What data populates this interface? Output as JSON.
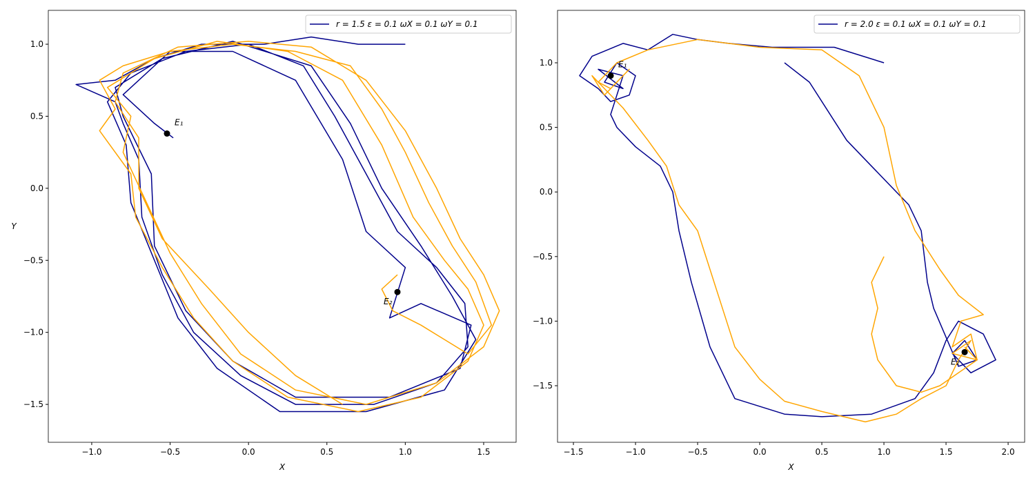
{
  "chart_data": [
    {
      "type": "line",
      "xlabel": "X",
      "ylabel": "Y",
      "xlim": [
        -1.277,
        1.707
      ],
      "ylim": [
        -1.763,
        1.235
      ],
      "xticks": [
        {
          "value": -1.0,
          "label": "−1.0"
        },
        {
          "value": -0.5,
          "label": "−0.5"
        },
        {
          "value": 0.0,
          "label": "0.0"
        },
        {
          "value": 0.5,
          "label": "0.5"
        },
        {
          "value": 1.0,
          "label": "1.0"
        },
        {
          "value": 1.5,
          "label": "1.5"
        }
      ],
      "yticks": [
        {
          "value": 1.0,
          "label": "1.0"
        },
        {
          "value": 0.5,
          "label": "0.5"
        },
        {
          "value": 0.0,
          "label": "0.0"
        },
        {
          "value": -0.5,
          "label": "−0.5"
        },
        {
          "value": -1.0,
          "label": "−1.0"
        },
        {
          "value": -1.5,
          "label": "−1.5"
        }
      ],
      "legend": "upper right",
      "series": [
        {
          "name": "r = 1.5   ε = 0.1   ωX = 0.1   ωY = 0.1",
          "color": "#00008b",
          "x": [
            1.0,
            0.7,
            0.4,
            0.1,
            -0.3,
            -0.6,
            -0.85,
            -1.1,
            -0.85,
            -0.8,
            -0.7,
            -0.68,
            -0.55,
            -0.35,
            -0.05,
            0.3,
            0.8,
            1.2,
            1.4,
            1.38,
            1.2,
            0.95,
            0.75,
            0.55,
            0.35,
            0.0,
            -0.4,
            -0.75,
            -0.9,
            -0.78,
            -0.75,
            -0.6,
            -0.45,
            -0.2,
            0.2,
            0.75,
            1.25,
            1.45,
            1.3,
            1.1,
            0.85,
            0.65,
            0.4,
            -0.1,
            -0.55,
            -0.85,
            -0.8,
            -0.62,
            -0.6,
            -0.4,
            -0.1,
            0.3,
            0.9,
            1.35,
            1.42,
            1.1,
            0.9,
            1.0,
            0.75,
            0.6,
            0.3,
            -0.1,
            -0.5,
            -0.8,
            -0.6,
            -0.48
          ],
          "y": [
            1.0,
            1.0,
            1.05,
            1.0,
            1.0,
            0.9,
            0.75,
            0.72,
            0.6,
            0.45,
            0.2,
            -0.2,
            -0.6,
            -1.0,
            -1.3,
            -1.5,
            -1.5,
            -1.35,
            -1.1,
            -0.8,
            -0.55,
            -0.3,
            0.1,
            0.5,
            0.85,
            1.0,
            0.95,
            0.8,
            0.6,
            0.3,
            -0.1,
            -0.5,
            -0.9,
            -1.25,
            -1.55,
            -1.55,
            -1.4,
            -1.05,
            -0.75,
            -0.4,
            0.0,
            0.45,
            0.85,
            1.02,
            0.9,
            0.7,
            0.5,
            0.1,
            -0.4,
            -0.85,
            -1.2,
            -1.45,
            -1.45,
            -1.25,
            -0.95,
            -0.8,
            -0.9,
            -0.55,
            -0.3,
            0.2,
            0.75,
            0.95,
            0.95,
            0.65,
            0.45,
            0.35
          ]
        },
        {
          "color": "#ffa500",
          "x": [
            0.95,
            0.85,
            0.92,
            1.1,
            1.25,
            1.4,
            1.55,
            1.45,
            1.3,
            1.15,
            1.0,
            0.85,
            0.65,
            0.3,
            -0.1,
            -0.5,
            -0.8,
            -0.95,
            -0.85,
            -0.95,
            -0.75,
            -0.72,
            -0.55,
            -0.35,
            -0.1,
            0.25,
            0.7,
            1.1,
            1.4,
            1.5,
            1.4,
            1.25,
            1.05,
            0.85,
            0.6,
            0.25,
            -0.2,
            -0.6,
            -0.9,
            -0.75,
            -0.8,
            -0.65,
            -0.5,
            -0.3,
            -0.05,
            0.3,
            0.75,
            1.2,
            1.5,
            1.6,
            1.5,
            1.35,
            1.2,
            1.0,
            0.75,
            0.4,
            0.0,
            -0.45,
            -0.8,
            -0.85,
            -0.7,
            -0.7,
            -0.55,
            -0.25,
            0.0,
            0.3,
            0.6
          ],
          "y": [
            -0.6,
            -0.7,
            -0.85,
            -0.95,
            -1.05,
            -1.15,
            -0.95,
            -0.65,
            -0.4,
            -0.1,
            0.25,
            0.55,
            0.85,
            0.95,
            1.0,
            0.95,
            0.85,
            0.75,
            0.55,
            0.4,
            0.1,
            -0.2,
            -0.55,
            -0.9,
            -1.2,
            -1.45,
            -1.55,
            -1.45,
            -1.2,
            -0.95,
            -0.7,
            -0.5,
            -0.2,
            0.3,
            0.75,
            0.95,
            1.02,
            0.9,
            0.7,
            0.5,
            0.25,
            -0.1,
            -0.45,
            -0.8,
            -1.15,
            -1.4,
            -1.5,
            -1.35,
            -1.1,
            -0.85,
            -0.6,
            -0.35,
            0.0,
            0.4,
            0.75,
            0.98,
            1.02,
            0.98,
            0.8,
            0.6,
            0.35,
            0.0,
            -0.35,
            -0.7,
            -1.0,
            -1.3,
            -1.5
          ]
        }
      ],
      "points": [
        {
          "label": "E₁",
          "x": -0.52,
          "y": 0.38
        },
        {
          "label": "E₂",
          "x": 0.95,
          "y": -0.72
        }
      ]
    },
    {
      "type": "line",
      "xlabel": "X",
      "xlim": [
        -1.628,
        2.133
      ],
      "ylim": [
        -1.938,
        1.406
      ],
      "xticks": [
        {
          "value": -1.5,
          "label": "−1.5"
        },
        {
          "value": -1.0,
          "label": "−1.0"
        },
        {
          "value": -0.5,
          "label": "−0.5"
        },
        {
          "value": 0.0,
          "label": "0.0"
        },
        {
          "value": 0.5,
          "label": "0.5"
        },
        {
          "value": 1.0,
          "label": "1.0"
        },
        {
          "value": 1.5,
          "label": "1.5"
        },
        {
          "value": 2.0,
          "label": "2.0"
        }
      ],
      "yticks": [
        {
          "value": 1.0,
          "label": "1.0"
        },
        {
          "value": 0.5,
          "label": "0.5"
        },
        {
          "value": 0.0,
          "label": "0.0"
        },
        {
          "value": -0.5,
          "label": "−0.5"
        },
        {
          "value": -1.0,
          "label": "−1.0"
        },
        {
          "value": -1.5,
          "label": "−1.5"
        }
      ],
      "legend": "upper right",
      "series": [
        {
          "name": "r = 2.0   ε = 0.1   ωX = 0.1   ωY = 0.1",
          "color": "#00008b",
          "x": [
            1.0,
            0.6,
            0.1,
            -0.25,
            -0.5,
            -0.7,
            -0.9,
            -1.1,
            -1.35,
            -1.45,
            -1.3,
            -1.2,
            -1.05,
            -1.0,
            -1.15,
            -1.25,
            -1.1,
            -1.3,
            -1.1,
            -1.2,
            -1.15,
            -1.0,
            -0.8,
            -0.7,
            -0.65,
            -0.55,
            -0.4,
            -0.2,
            0.2,
            0.5,
            0.9,
            1.25,
            1.4,
            1.5,
            1.6,
            1.8,
            1.9,
            1.7,
            1.55,
            1.65,
            1.75,
            1.6,
            1.4,
            1.35,
            1.3,
            1.2,
            0.9,
            0.7,
            0.4,
            0.2
          ],
          "y": [
            1.0,
            1.12,
            1.12,
            1.15,
            1.18,
            1.22,
            1.1,
            1.15,
            1.05,
            0.9,
            0.8,
            0.7,
            0.75,
            0.9,
            1.0,
            0.85,
            0.8,
            0.95,
            0.9,
            0.6,
            0.5,
            0.35,
            0.2,
            0.0,
            -0.3,
            -0.7,
            -1.2,
            -1.6,
            -1.72,
            -1.74,
            -1.72,
            -1.6,
            -1.4,
            -1.15,
            -1.0,
            -1.1,
            -1.3,
            -1.4,
            -1.25,
            -1.15,
            -1.3,
            -1.35,
            -0.9,
            -0.7,
            -0.3,
            -0.1,
            0.2,
            0.4,
            0.85,
            1.0
          ]
        },
        {
          "color": "#ffa500",
          "x": [
            1.0,
            0.9,
            0.95,
            0.9,
            0.95,
            1.1,
            1.3,
            1.45,
            1.6,
            1.75,
            1.7,
            1.55,
            1.62,
            1.8,
            1.6,
            1.45,
            1.25,
            1.1,
            1.0,
            0.8,
            0.5,
            0.0,
            -0.5,
            -0.9,
            -1.15,
            -1.3,
            -1.2,
            -1.05,
            -1.25,
            -1.35,
            -1.1,
            -0.9,
            -0.75,
            -0.65,
            -0.5,
            -0.4,
            -0.3,
            -0.2,
            0.0,
            0.2,
            0.5,
            0.85,
            1.1,
            1.3,
            1.5,
            1.6,
            1.7,
            1.55,
            1.75,
            1.65
          ],
          "y": [
            -0.5,
            -0.7,
            -0.9,
            -1.1,
            -1.3,
            -1.5,
            -1.55,
            -1.5,
            -1.4,
            -1.3,
            -1.1,
            -1.2,
            -1.0,
            -0.95,
            -0.8,
            -0.6,
            -0.3,
            0.05,
            0.5,
            0.9,
            1.1,
            1.12,
            1.18,
            1.1,
            1.0,
            0.85,
            0.8,
            0.95,
            0.75,
            0.9,
            0.65,
            0.4,
            0.2,
            -0.1,
            -0.3,
            -0.6,
            -0.9,
            -1.2,
            -1.45,
            -1.62,
            -1.7,
            -1.78,
            -1.72,
            -1.6,
            -1.5,
            -1.3,
            -1.15,
            -1.25,
            -1.3,
            -1.2
          ]
        }
      ],
      "points": [
        {
          "label": "E₁",
          "x": -1.2,
          "y": 0.9
        },
        {
          "label": "E₂",
          "x": 1.65,
          "y": -1.24
        }
      ]
    }
  ]
}
